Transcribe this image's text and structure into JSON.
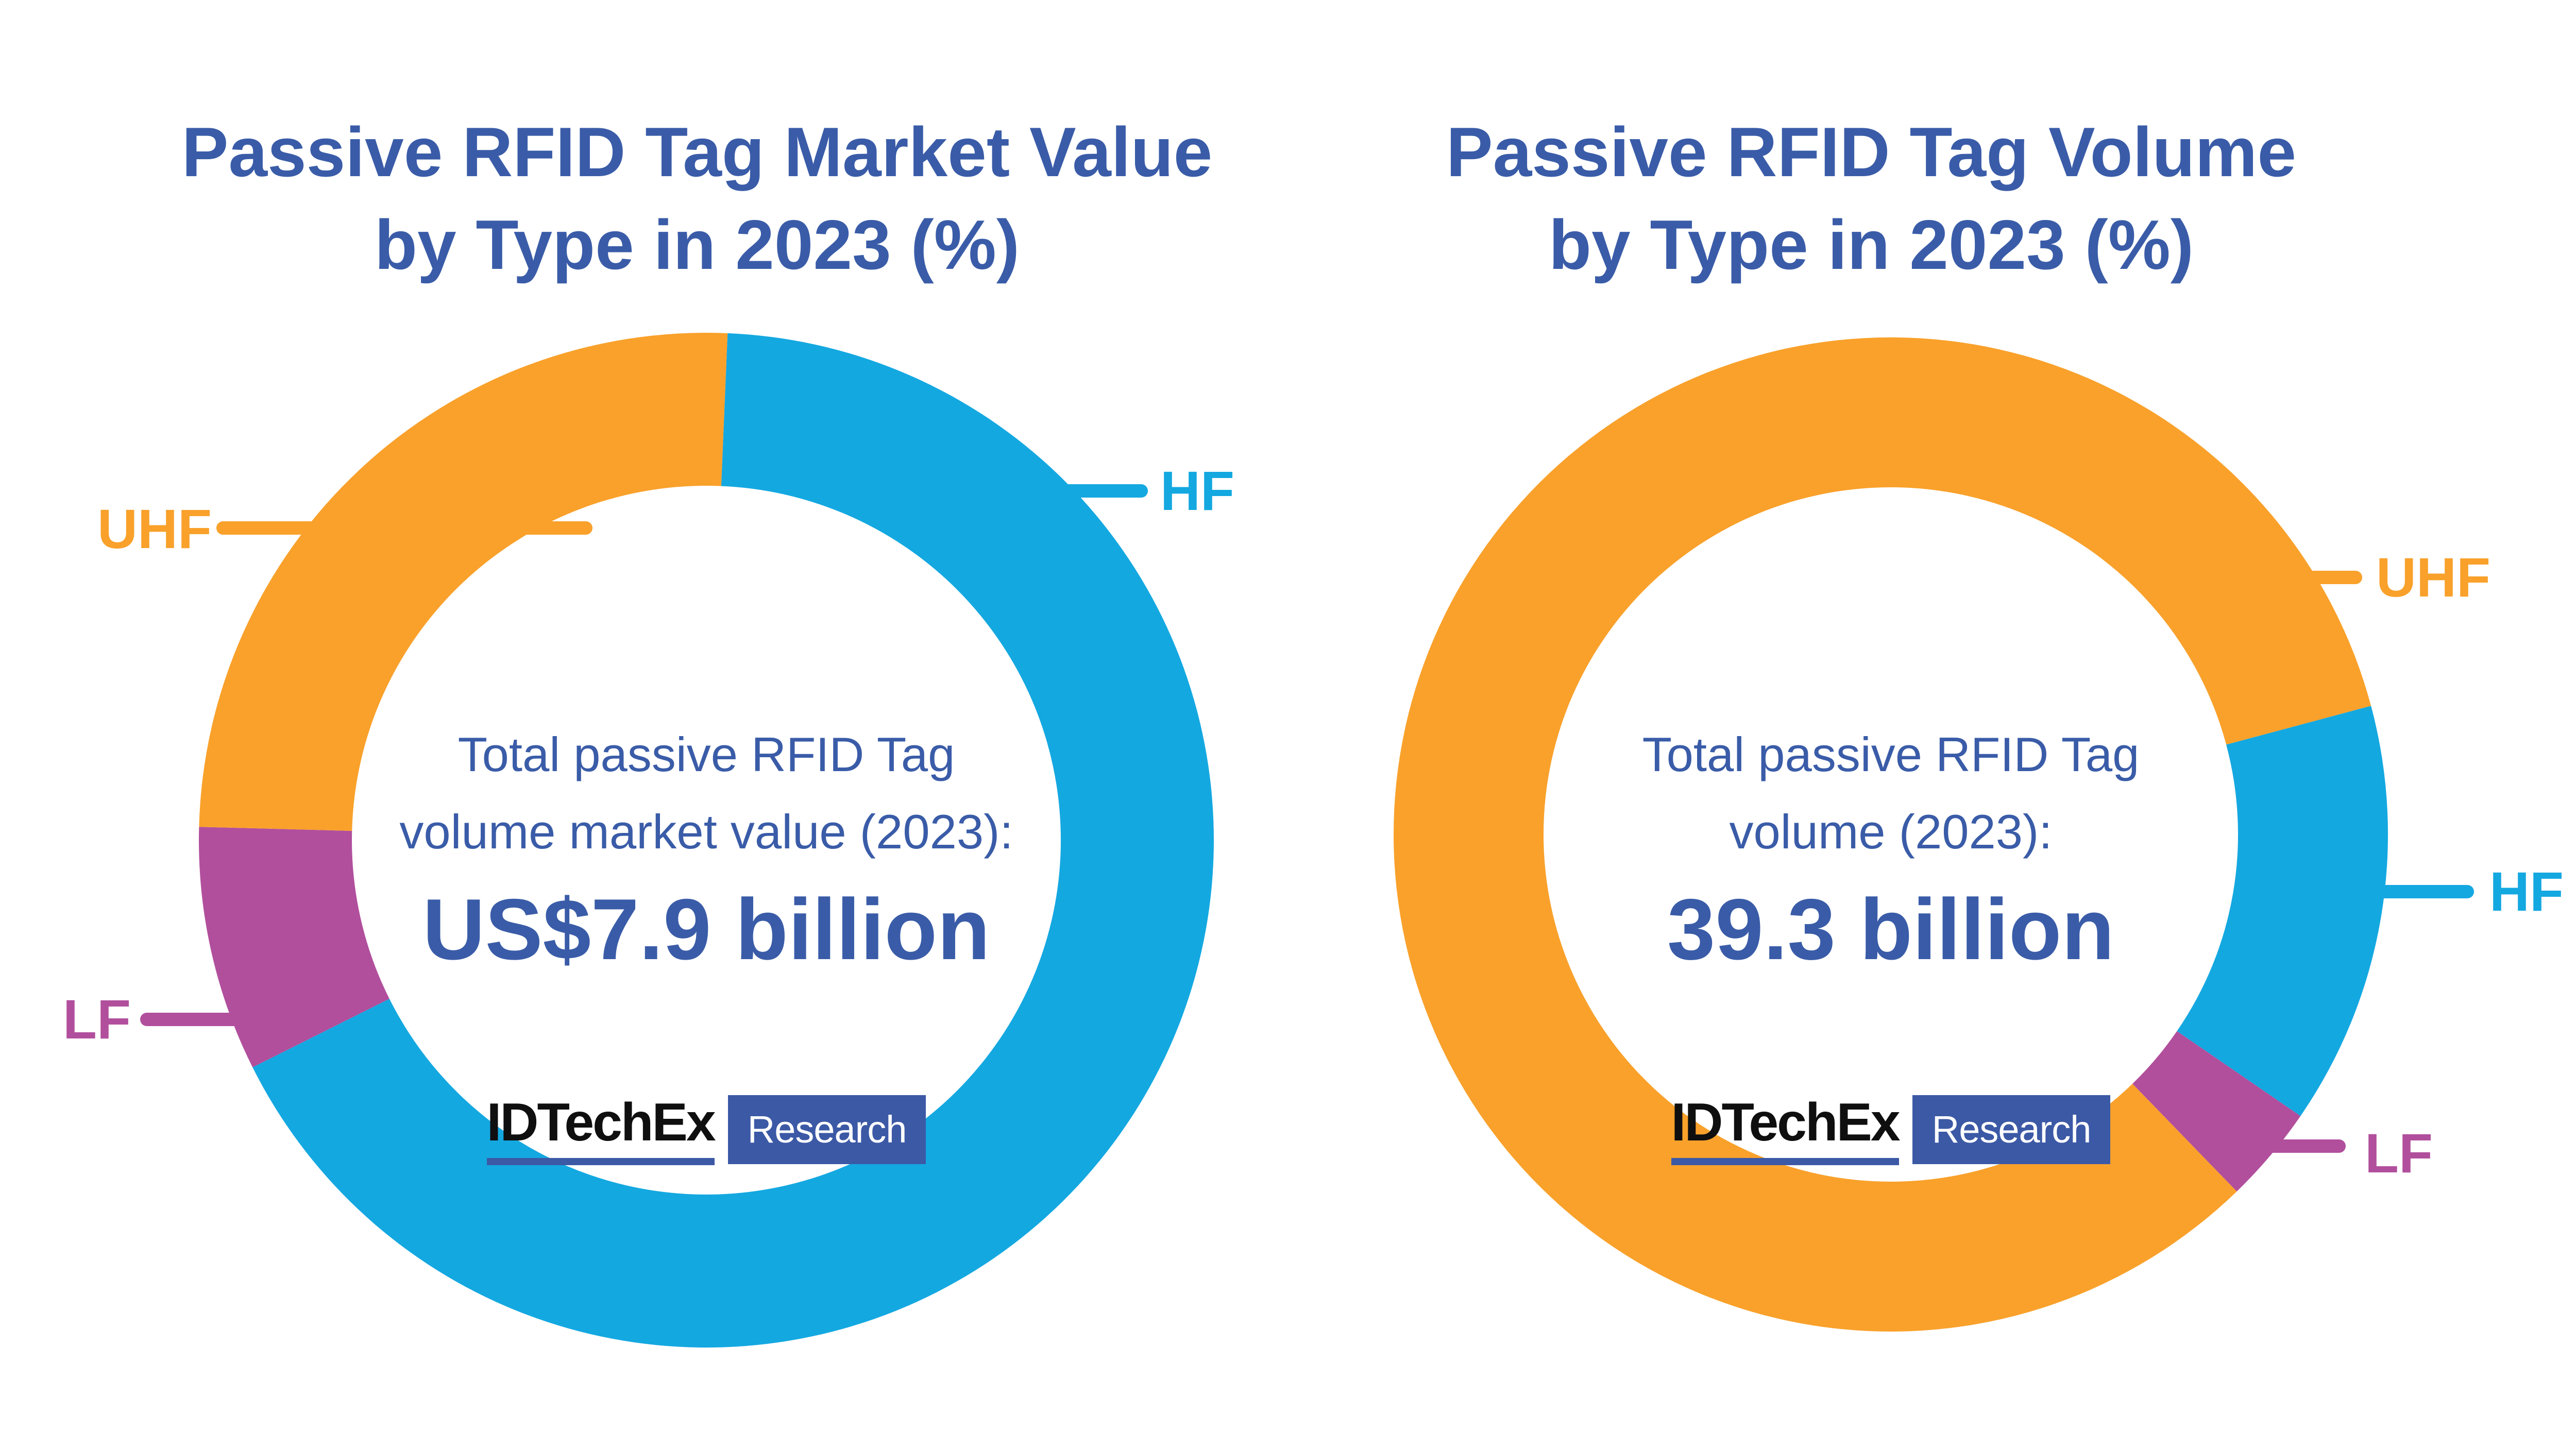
{
  "page": {
    "background": "#FFFFFF"
  },
  "colors": {
    "uhf_orange": "#F9A12B",
    "hf_blue": "#14A8E1",
    "lf_purple": "#B14F9D",
    "text_navy": "#3A5CA8",
    "logo_navy": "#3C59A6",
    "logo_black": "#0F0F0F"
  },
  "logo": {
    "brand": "IDTechEx",
    "suffix": "Research"
  },
  "chart_data": [
    {
      "type": "pie",
      "variant": "donut",
      "title": "Passive RFID Tag Market Value by Type in 2023 (%)",
      "title_lines": [
        "Passive RFID Tag Market Value",
        "by Type in 2023 (%)"
      ],
      "center_label": [
        "Total passive RFID Tag",
        "volume market value (2023):"
      ],
      "center_value": "US$7.9 billion",
      "legend_position": "callout-labels",
      "segments": [
        {
          "label": "HF",
          "percent": 67.0,
          "color": "#14A8E1",
          "start_deg": 2.4,
          "end_deg": 243.4
        },
        {
          "label": "LF",
          "percent": 7.8,
          "color": "#B14F9D",
          "start_deg": 243.4,
          "end_deg": 271.5
        },
        {
          "label": "UHF",
          "percent": 25.2,
          "color": "#F9A12B",
          "start_deg": 271.5,
          "end_deg": 362.4
        }
      ]
    },
    {
      "type": "pie",
      "variant": "donut",
      "title": "Passive RFID Tag Volume by Type in 2023 (%)",
      "title_lines": [
        "Passive RFID Tag Volume",
        "by Type in 2023 (%)"
      ],
      "center_label": [
        "Total passive RFID Tag",
        "volume (2023):"
      ],
      "center_value": "39.3 billion",
      "legend_position": "callout-labels",
      "segments": [
        {
          "label": "HF",
          "percent": 13.8,
          "color": "#14A8E1",
          "start_deg": 75.0,
          "end_deg": 124.5
        },
        {
          "label": "LF",
          "percent": 3.2,
          "color": "#B14F9D",
          "start_deg": 124.5,
          "end_deg": 135.9
        },
        {
          "label": "UHF",
          "percent": 83.0,
          "color": "#F9A12B",
          "start_deg": 135.9,
          "end_deg": 435.0
        }
      ]
    }
  ]
}
